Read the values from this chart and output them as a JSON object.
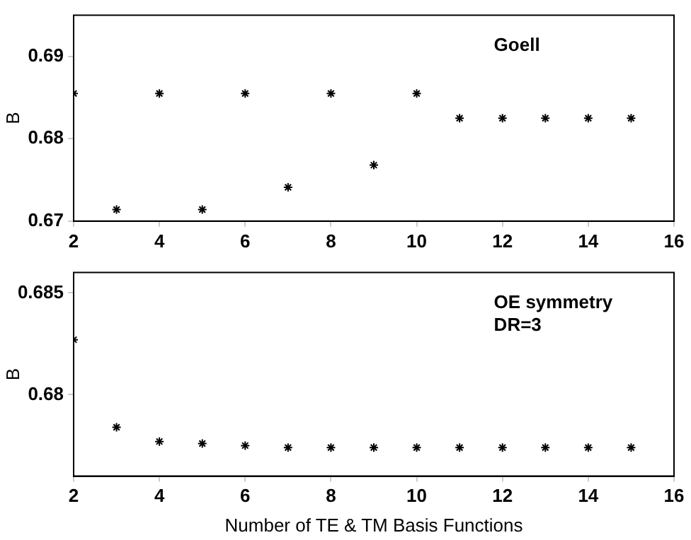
{
  "chart_data": [
    {
      "type": "scatter",
      "ylabel": "B",
      "annotations": [
        "Goell"
      ],
      "x": [
        2,
        3,
        4,
        5,
        6,
        7,
        8,
        9,
        10,
        11,
        12,
        13,
        14,
        15
      ],
      "series": [
        {
          "color": "#000000",
          "values": [
            0.6855,
            0.6714,
            0.6855,
            0.6714,
            0.6855,
            0.6741,
            0.6855,
            0.6768,
            0.6855,
            0.6825,
            0.6825,
            0.6825,
            0.6825,
            0.6825
          ]
        }
      ],
      "xlim": [
        2,
        16
      ],
      "xticks": [
        2,
        4,
        6,
        8,
        10,
        12,
        14,
        16
      ],
      "ylim": [
        0.67,
        0.695
      ],
      "yticks": [
        0.67,
        0.68,
        0.69
      ],
      "marker": "cross",
      "grid": false,
      "legend": false
    },
    {
      "type": "scatter",
      "ylabel": "B",
      "xlabel": "Number of TE & TM Basis Functions",
      "annotations": [
        "OE symmetry\nDR=3"
      ],
      "x": [
        2,
        3,
        4,
        5,
        6,
        7,
        8,
        9,
        10,
        11,
        12,
        13,
        14,
        15
      ],
      "series": [
        {
          "color": "#000000",
          "values": [
            0.6827,
            0.6784,
            0.6777,
            0.6776,
            0.6775,
            0.6774,
            0.6774,
            0.6774,
            0.6774,
            0.6774,
            0.6774,
            0.6774,
            0.6774,
            0.6774
          ]
        }
      ],
      "xlim": [
        2,
        16
      ],
      "xticks": [
        2,
        4,
        6,
        8,
        10,
        12,
        14,
        16
      ],
      "ylim": [
        0.676,
        0.686
      ],
      "yticks": [
        0.68,
        0.685
      ],
      "marker": "cross",
      "grid": false,
      "legend": false
    }
  ]
}
